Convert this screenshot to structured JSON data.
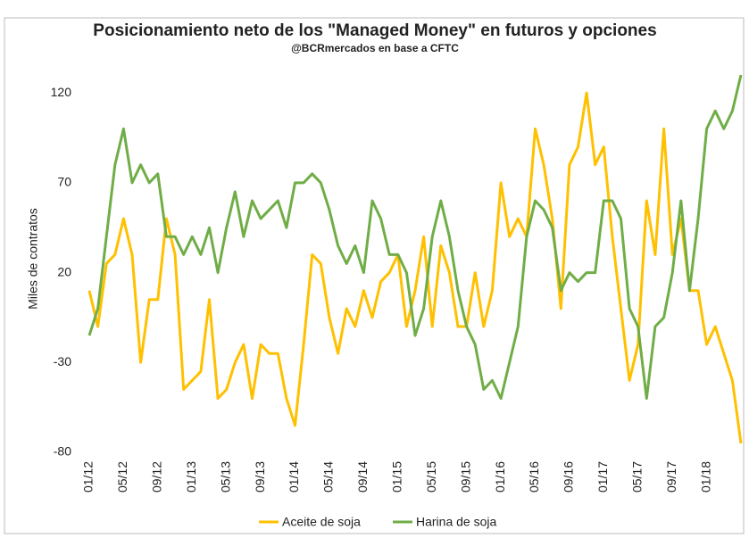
{
  "chart_data": {
    "type": "line",
    "title": "Posicionamiento neto de los \"Managed Money\" en futuros y opciones",
    "subtitle": "@BCRmercados en base a CFTC",
    "y_label": "Miles de contratos",
    "categories": [
      "01/12",
      null,
      null,
      null,
      "05/12",
      null,
      null,
      null,
      "09/12",
      null,
      null,
      null,
      "01/13",
      null,
      null,
      null,
      "05/13",
      null,
      null,
      null,
      "09/13",
      null,
      null,
      null,
      "01/14",
      null,
      null,
      null,
      "05/14",
      null,
      null,
      null,
      "09/14",
      null,
      null,
      null,
      "01/15",
      null,
      null,
      null,
      "05/15",
      null,
      null,
      null,
      "09/15",
      null,
      null,
      null,
      "01/16",
      null,
      null,
      null,
      "05/16",
      null,
      null,
      null,
      "09/16",
      null,
      null,
      null,
      "01/17",
      null,
      null,
      null,
      "05/17",
      null,
      null,
      null,
      "09/17",
      null,
      null,
      null,
      "01/18",
      null,
      null,
      null,
      null
    ],
    "series": [
      {
        "name": "Aceite de soja",
        "color": "#ffc000",
        "values": [
          10,
          -10,
          25,
          30,
          50,
          30,
          -30,
          5,
          5,
          50,
          30,
          -45,
          -40,
          -35,
          5,
          -50,
          -45,
          -30,
          -20,
          -50,
          -20,
          -25,
          -25,
          -50,
          -65,
          -20,
          30,
          25,
          -5,
          -25,
          0,
          -10,
          10,
          -5,
          15,
          20,
          30,
          -10,
          10,
          40,
          -10,
          35,
          20,
          -10,
          -10,
          20,
          -10,
          10,
          70,
          40,
          50,
          40,
          100,
          80,
          50,
          0,
          80,
          90,
          120,
          80,
          90,
          40,
          0,
          -40,
          -20,
          60,
          30,
          100,
          30,
          50,
          10,
          10,
          -20,
          -10,
          -25,
          -40,
          -75
        ]
      },
      {
        "name": "Harina de soja",
        "color": "#70ad47",
        "values": [
          -15,
          0,
          40,
          80,
          100,
          70,
          80,
          70,
          75,
          40,
          40,
          30,
          40,
          30,
          45,
          20,
          45,
          65,
          40,
          60,
          50,
          55,
          60,
          45,
          70,
          70,
          75,
          70,
          55,
          35,
          25,
          35,
          20,
          60,
          50,
          30,
          30,
          20,
          -15,
          0,
          40,
          60,
          40,
          10,
          -10,
          -20,
          -45,
          -40,
          -50,
          -30,
          -10,
          40,
          60,
          55,
          45,
          10,
          20,
          15,
          20,
          20,
          60,
          60,
          50,
          0,
          -10,
          -50,
          -10,
          -5,
          20,
          60,
          10,
          50,
          100,
          110,
          100,
          110,
          130
        ]
      }
    ],
    "ylim": [
      -80,
      130
    ],
    "yticks": [
      -80,
      -30,
      20,
      70,
      120
    ],
    "legend": "bottom"
  }
}
